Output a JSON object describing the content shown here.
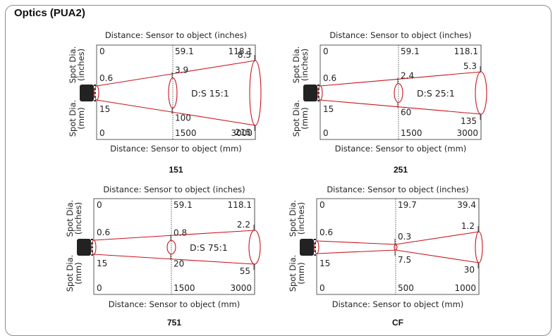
{
  "title": "Optics (PUA2)",
  "colors": {
    "beam": "#c8141e",
    "sensor": "#222222",
    "frame": "#8c8c8c"
  },
  "diagrams": [
    {
      "name": "151",
      "top_caption": "Distance: Sensor  to object (inches)",
      "bottom_caption": "Distance:  Sensor to object (mm)",
      "side_label_top": [
        "Spot Dia.",
        "(inches)"
      ],
      "side_label_bottom": [
        "Spot Dia.",
        "(mm)"
      ],
      "ds_label": "D:S  15:1",
      "dist_in": [
        "0",
        "59.1",
        "118.1"
      ],
      "spot_in": [
        "0.6",
        "3.9",
        "8.5"
      ],
      "spot_mm": [
        "15",
        "100",
        "215"
      ],
      "dist_mm": [
        "0",
        "1500",
        "3000"
      ],
      "chart_data": {
        "type": "diagram",
        "distance_mm": [
          0,
          1500,
          3000
        ],
        "spot_mm": [
          15,
          100,
          215
        ],
        "distance_in": [
          0,
          59.1,
          118.1
        ],
        "spot_in": [
          0.6,
          3.9,
          8.5
        ],
        "ratio": "15:1"
      }
    },
    {
      "name": "251",
      "top_caption": "Distance: Sensor  to object (inches)",
      "bottom_caption": "Distance:  Sensor to object (mm)",
      "side_label_top": [
        "Spot Dia.",
        "(inches)"
      ],
      "side_label_bottom": [
        "Spot Dia.",
        "(mm)"
      ],
      "ds_label": "D:S  25:1",
      "dist_in": [
        "0",
        "59.1",
        "118.1"
      ],
      "spot_in": [
        "0.6",
        "2.4",
        "5.3"
      ],
      "spot_mm": [
        "15",
        "60",
        "135"
      ],
      "dist_mm": [
        "0",
        "1500",
        "3000"
      ],
      "chart_data": {
        "type": "diagram",
        "distance_mm": [
          0,
          1500,
          3000
        ],
        "spot_mm": [
          15,
          60,
          135
        ],
        "distance_in": [
          0,
          59.1,
          118.1
        ],
        "spot_in": [
          0.6,
          2.4,
          5.3
        ],
        "ratio": "25:1"
      }
    },
    {
      "name": "751",
      "top_caption": "Distance: Sensor  to object (inches)",
      "bottom_caption": "Distance:  Sensor to object (mm)",
      "side_label_top": [
        "Spot Dia.",
        "(inches)"
      ],
      "side_label_bottom": [
        "Spot Dia.",
        "(mm)"
      ],
      "ds_label": "D:S  75:1",
      "dist_in": [
        "0",
        "59.1",
        "118.1"
      ],
      "spot_in": [
        "0.6",
        "0.8",
        "2.2"
      ],
      "spot_mm": [
        "15",
        "20",
        "55"
      ],
      "dist_mm": [
        "0",
        "1500",
        "3000"
      ],
      "chart_data": {
        "type": "diagram",
        "distance_mm": [
          0,
          1500,
          3000
        ],
        "spot_mm": [
          15,
          20,
          55
        ],
        "distance_in": [
          0,
          59.1,
          118.1
        ],
        "spot_in": [
          0.6,
          0.8,
          2.2
        ],
        "ratio": "75:1"
      }
    },
    {
      "name": "CF",
      "top_caption": "Distance: Sensor  to object (inches)",
      "bottom_caption": "Distance:  Sensor to object (mm)",
      "side_label_top": [
        "Spot Dia.",
        "(inches)"
      ],
      "side_label_bottom": [
        "Spot Dia.",
        "(mm)"
      ],
      "ds_label": "",
      "dist_in": [
        "0",
        "19.7",
        "39.4"
      ],
      "spot_in": [
        "0.6",
        "0.3",
        "1.2"
      ],
      "spot_mm": [
        "15",
        "7.5",
        "30"
      ],
      "dist_mm": [
        "0",
        "500",
        "1000"
      ],
      "chart_data": {
        "type": "diagram",
        "distance_mm": [
          0,
          500,
          1000
        ],
        "spot_mm": [
          15,
          7.5,
          30
        ],
        "distance_in": [
          0,
          19.7,
          39.4
        ],
        "spot_in": [
          0.6,
          0.3,
          1.2
        ],
        "ratio": ""
      }
    }
  ]
}
